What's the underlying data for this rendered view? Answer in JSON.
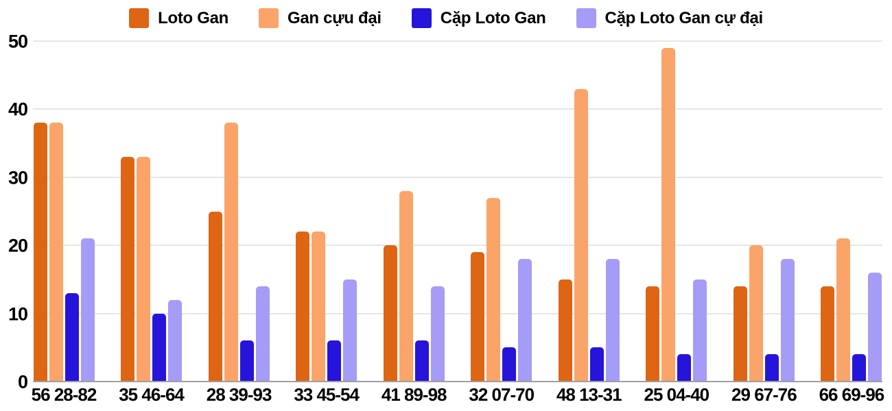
{
  "chart_data": {
    "type": "bar",
    "categories": [
      "56 28-82",
      "35 46-64",
      "28 39-93",
      "33 45-54",
      "41 89-98",
      "32 07-70",
      "48 13-31",
      "25 04-40",
      "29 67-76",
      "66 69-96"
    ],
    "series": [
      {
        "key": "loto-gan",
        "name": "Loto Gan",
        "color": "#DD6513",
        "values": [
          38,
          33,
          25,
          22,
          20,
          19,
          15,
          14,
          14,
          14
        ]
      },
      {
        "key": "gan-cuu-dai",
        "name": "Gan cựu đại",
        "color": "#FAA469",
        "values": [
          38,
          33,
          38,
          22,
          28,
          27,
          43,
          49,
          20,
          21
        ]
      },
      {
        "key": "cap-loto-gan",
        "name": "Cặp Loto Gan",
        "color": "#2614DB",
        "values": [
          13,
          10,
          6,
          6,
          6,
          5,
          5,
          4,
          4,
          4
        ]
      },
      {
        "key": "cap-loto-gan-cu-dai",
        "name": "Cặp Loto Gan cự đại",
        "color": "#A49CF7",
        "values": [
          21,
          12,
          14,
          15,
          14,
          18,
          18,
          15,
          18,
          16
        ]
      }
    ],
    "xlabel": "",
    "ylabel": "",
    "ylim": [
      0,
      50
    ],
    "yticks": [
      0,
      10,
      20,
      30,
      40,
      50
    ],
    "grid": true,
    "legend_position": "top",
    "background_color": "#FFFFFF",
    "gridline_color": "#E6E6E6",
    "baseline_color": "#9E9E9E",
    "text_color": "#000000"
  }
}
